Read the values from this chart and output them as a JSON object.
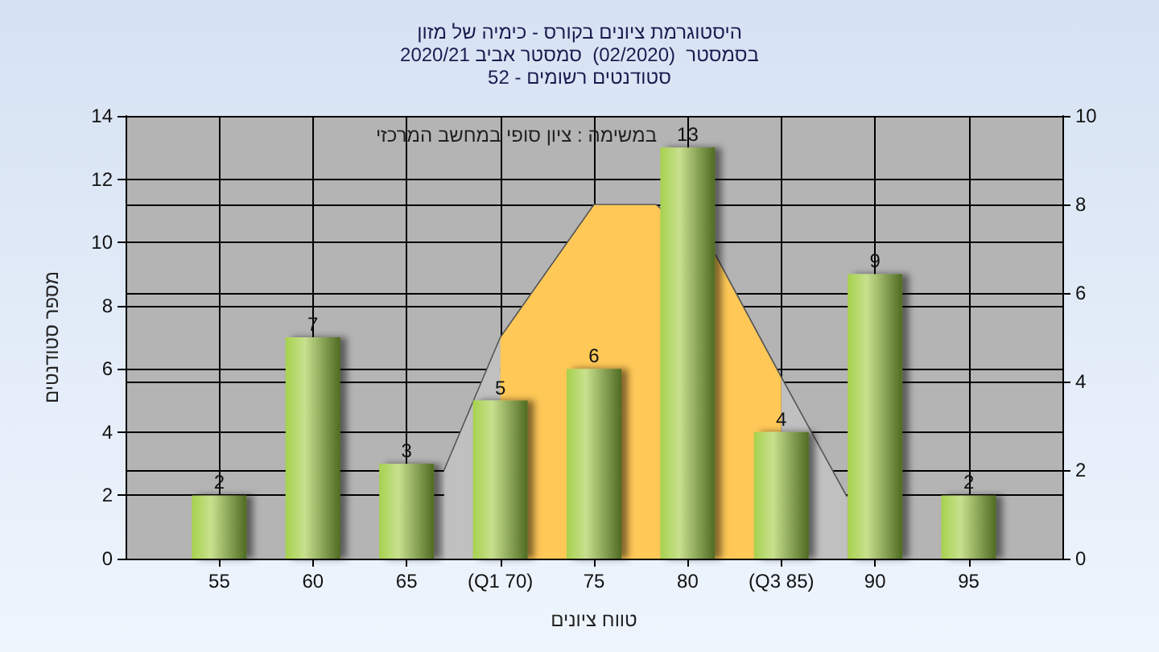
{
  "chart_data": {
    "type": "bar",
    "title": "היסטוגרמת ציונים בקורס - כימיה של מזון\nבסמסטר  (02/2020)  סמסטר אביב 2020/21\nסטודנטים רשומים - 52",
    "xlabel": "טווח ציונים",
    "ylabel": "מספר סטודנטים",
    "annotations": [
      "במשימה : ציון סופי במחשב המרכזי"
    ],
    "xlim": [
      50,
      100
    ],
    "xticks": [
      55,
      60,
      65,
      {
        "value": 70,
        "label": "(Q1 70)"
      },
      75,
      80,
      {
        "value": 85,
        "label": "(Q3 85)"
      },
      90,
      95
    ],
    "ylim": [
      0,
      14
    ],
    "yticks": [
      0,
      2,
      4,
      6,
      8,
      10,
      12,
      14
    ],
    "y2lim": [
      0,
      10
    ],
    "y2ticks": [
      0,
      2,
      4,
      6,
      8,
      10
    ],
    "grid": true,
    "series": [
      {
        "type": "area",
        "axis": "y2",
        "color": "#c0c0c0",
        "x": [
          67,
          70
        ],
        "values": [
          2,
          5
        ]
      },
      {
        "type": "area",
        "axis": "y2",
        "color": "#ffc857",
        "x": [
          70,
          75,
          78.3,
          81.5,
          85
        ],
        "values": [
          5,
          8,
          8,
          6.85,
          4.1
        ]
      },
      {
        "type": "area",
        "axis": "y2",
        "color": "#c0c0c0",
        "x": [
          85,
          88.5
        ],
        "values": [
          4.1,
          1.4
        ]
      },
      {
        "color": "#94b84a",
        "x": [
          55,
          60,
          65,
          70,
          75,
          80,
          85,
          90,
          95
        ],
        "values": [
          2,
          7,
          3,
          5,
          6,
          13,
          4,
          9,
          2
        ],
        "value_labels": [
          "2",
          "7",
          "3",
          "5",
          "6",
          "13",
          "4",
          "9",
          "2"
        ]
      }
    ]
  }
}
